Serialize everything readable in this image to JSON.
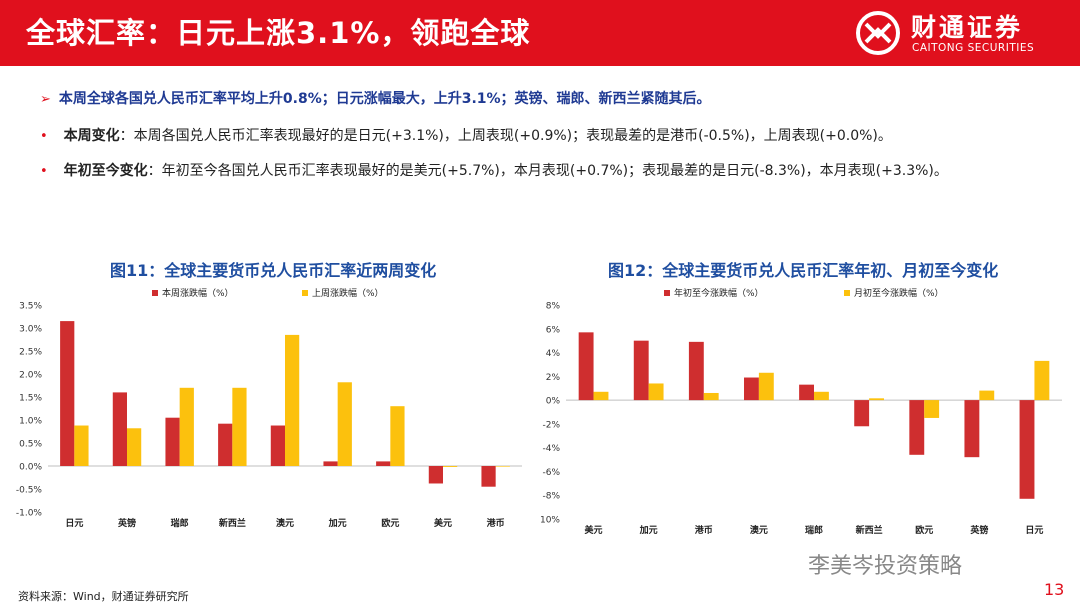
{
  "header": {
    "title": "全球汇率：日元上涨3.1%，领跑全球",
    "logo_cn": "财通证券",
    "logo_en": "CAITONG SECURITIES"
  },
  "bullets": {
    "summary": "本周全球各国兑人民币汇率平均上升0.8%；日元涨幅最大，上升3.1%；英镑、瑞郎、新西兰紧随其后。",
    "weekly_label": "本周变化",
    "weekly_text": "：本周各国兑人民币汇率表现最好的是日元(+3.1%)，上周表现(+0.9%)；表现最差的是港币(-0.5%)，上周表现(+0.0%)。",
    "ytd_label": "年初至今变化",
    "ytd_text": "：年初至今各国兑人民币汇率表现最好的是美元(+5.7%)，本月表现(+0.7%)；表现最差的是日元(-8.3%)，本月表现(+3.3%)。"
  },
  "footer": {
    "source": "资料来源：Wind，财通证券研究所",
    "watermark": "李美岑投资策略",
    "page": "13"
  },
  "colors": {
    "red": "#cf2e2f",
    "yellow": "#fcc10d",
    "brand": "#e0101d",
    "title_blue": "#1f4ea0"
  },
  "chart_data": [
    {
      "type": "bar",
      "title": "图11：全球主要货币兑人民币汇率近两周变化",
      "categories": [
        "日元",
        "英镑",
        "瑞郎",
        "新西兰",
        "澳元",
        "加元",
        "欧元",
        "美元",
        "港币"
      ],
      "series": [
        {
          "name": "本周涨跌幅（%）",
          "values": [
            3.15,
            1.6,
            1.05,
            0.92,
            0.88,
            0.1,
            0.1,
            -0.38,
            -0.45
          ]
        },
        {
          "name": "上周涨跌幅（%）",
          "values": [
            0.88,
            0.82,
            1.7,
            1.7,
            2.85,
            1.82,
            1.3,
            -0.02,
            0.0
          ]
        }
      ],
      "ylim": [
        -1.0,
        3.5
      ],
      "yticks": [
        "-1.0%",
        "-0.5%",
        "0.0%",
        "0.5%",
        "1.0%",
        "1.5%",
        "2.0%",
        "2.5%",
        "3.0%",
        "3.5%"
      ],
      "grid": false,
      "legend": "top"
    },
    {
      "type": "bar",
      "title": "图12：全球主要货币兑人民币汇率年初、月初至今变化",
      "categories": [
        "美元",
        "加元",
        "港币",
        "澳元",
        "瑞郎",
        "新西兰",
        "欧元",
        "英镑",
        "日元"
      ],
      "series": [
        {
          "name": "年初至今涨跌幅（%）",
          "values": [
            5.7,
            5.0,
            4.9,
            1.9,
            1.3,
            -2.2,
            -4.6,
            -4.8,
            -8.3
          ]
        },
        {
          "name": "月初至今涨跌幅（%）",
          "values": [
            0.7,
            1.4,
            0.6,
            2.3,
            0.7,
            0.15,
            -1.5,
            0.8,
            3.3
          ]
        }
      ],
      "ylim": [
        -10,
        8
      ],
      "yticks": [
        "-10%",
        "-8%",
        "-6%",
        "-4%",
        "-2%",
        "0%",
        "2%",
        "4%",
        "6%",
        "8%"
      ],
      "grid": false,
      "legend": "top"
    }
  ]
}
